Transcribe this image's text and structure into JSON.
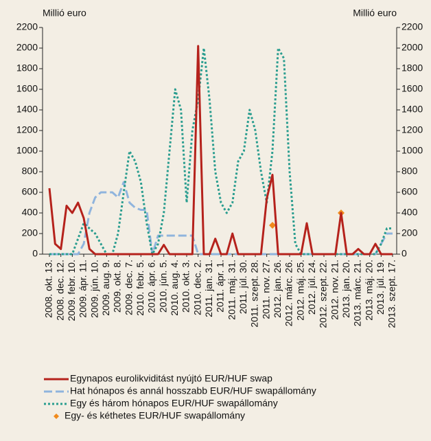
{
  "chart_data": {
    "type": "line",
    "y_label_left": "Millió euro",
    "y_label_right": "Millió euro",
    "categories": [
      "2008. okt. 13.",
      null,
      "2008. dec. 12.",
      null,
      "2009. febr. 10.",
      null,
      "2009. ápr. 11.",
      null,
      "2009. jún. 10.",
      null,
      "2009. aug. 9.",
      null,
      "2009. okt. 8.",
      null,
      "2009. dec. 7.",
      null,
      "2010. febr. 5.",
      null,
      "2010. ápr. 6.",
      null,
      "2010. jún. 5.",
      null,
      "2010. aug. 4.",
      null,
      "2010. okt. 3.",
      null,
      "2010. dec. 2.",
      null,
      "2011. jan. 31.",
      null,
      "2011. ápr. 1.",
      null,
      "2011. máj. 31.",
      null,
      "2011. júl. 30.",
      null,
      "2011. szept. 28.",
      null,
      "2011. nov. 27.",
      null,
      "2012. jan. 26.",
      null,
      "2012. márc. 26.",
      null,
      "2012. máj. 25.",
      null,
      "2012. júl. 24.",
      null,
      "2012. szept. 22.",
      null,
      "2012. nov. 21.",
      null,
      "2013. jan. 20.",
      null,
      "2013. márc. 21.",
      null,
      "2013. máj. 20.",
      null,
      "2013. júl. 19.",
      null,
      "2013. szept. 17."
    ],
    "series": [
      {
        "name": "Egynapos eurolikviditást nyújtó EUR/HUF swap",
        "color": "#b5221c",
        "style": "solid",
        "values": [
          640,
          100,
          50,
          470,
          400,
          500,
          350,
          50,
          0,
          0,
          0,
          0,
          0,
          0,
          0,
          0,
          0,
          0,
          0,
          0,
          90,
          0,
          0,
          0,
          0,
          0,
          2020,
          0,
          0,
          150,
          0,
          0,
          200,
          0,
          0,
          0,
          0,
          0,
          540,
          770,
          0,
          0,
          0,
          0,
          0,
          300,
          0,
          0,
          0,
          0,
          0,
          400,
          0,
          0,
          50,
          0,
          0,
          100,
          0,
          0,
          0
        ]
      },
      {
        "name": "Hat hónapos és annál hosszabb EUR/HUF swapállomány",
        "color": "#8fb4dd",
        "style": "dashed",
        "values": [
          0,
          0,
          0,
          0,
          0,
          0,
          100,
          400,
          550,
          600,
          600,
          600,
          550,
          700,
          500,
          450,
          430,
          430,
          0,
          180,
          180,
          180,
          180,
          180,
          180,
          180,
          0,
          0,
          0,
          0,
          0,
          0,
          0,
          0,
          0,
          0,
          0,
          0,
          0,
          0,
          0,
          0,
          0,
          0,
          0,
          0,
          0,
          0,
          0,
          0,
          0,
          0,
          0,
          0,
          0,
          0,
          0,
          0,
          100,
          200,
          200
        ]
      },
      {
        "name": "Egy és három hónapos EUR/HUF swapállomány",
        "color": "#2a9d8f",
        "style": "dotted",
        "values": [
          0,
          0,
          0,
          0,
          0,
          150,
          300,
          250,
          200,
          100,
          0,
          0,
          200,
          600,
          1000,
          900,
          700,
          300,
          0,
          100,
          400,
          1000,
          1600,
          1400,
          500,
          1200,
          1500,
          2000,
          1500,
          800,
          500,
          400,
          500,
          900,
          1000,
          1400,
          1200,
          800,
          500,
          1000,
          2000,
          1900,
          800,
          100,
          0,
          0,
          0,
          0,
          0,
          0,
          0,
          0,
          0,
          0,
          0,
          0,
          0,
          0,
          100,
          250,
          250
        ]
      },
      {
        "name": "Egy- és kéthetes EUR/HUF swapállomány",
        "color": "#f08a1c",
        "style": "marker",
        "values": [
          null,
          null,
          null,
          null,
          null,
          null,
          null,
          null,
          null,
          null,
          null,
          null,
          null,
          null,
          null,
          null,
          null,
          null,
          null,
          null,
          null,
          null,
          null,
          null,
          null,
          null,
          null,
          null,
          null,
          null,
          null,
          null,
          null,
          null,
          null,
          null,
          null,
          null,
          null,
          280,
          null,
          null,
          null,
          null,
          null,
          null,
          null,
          null,
          null,
          null,
          null,
          400,
          null,
          null,
          null,
          null,
          null,
          null,
          null,
          null,
          null
        ]
      }
    ],
    "ylim": [
      0,
      2200
    ],
    "yticks": [
      0,
      200,
      400,
      600,
      800,
      1000,
      1200,
      1400,
      1600,
      1800,
      2000,
      2200
    ],
    "y2lim": [
      0,
      2200
    ],
    "y2ticks": [
      0,
      200,
      400,
      600,
      800,
      1000,
      1200,
      1400,
      1600,
      1800,
      2000,
      2200
    ]
  }
}
